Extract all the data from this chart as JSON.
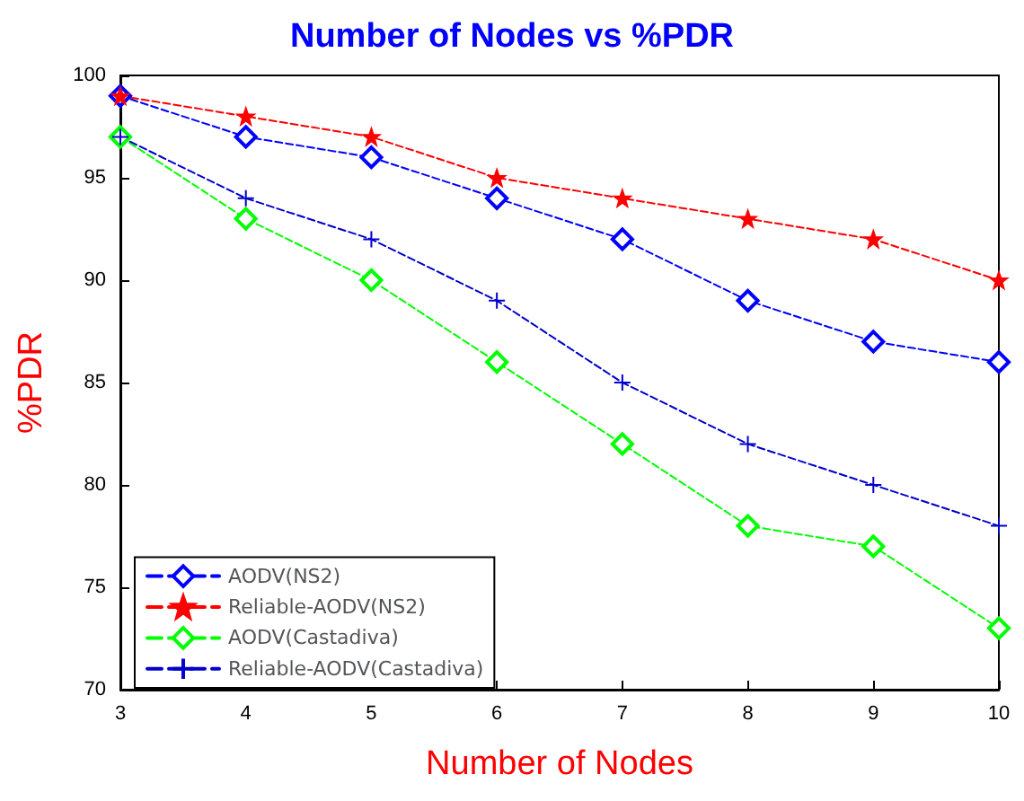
{
  "chart_data": {
    "type": "line",
    "title": "Number of Nodes vs %PDR",
    "xlabel": "Number of Nodes",
    "ylabel": "%PDR",
    "x": [
      3,
      4,
      5,
      6,
      7,
      8,
      9,
      10
    ],
    "series": [
      {
        "name": "AODV(NS2)",
        "color": "#0000ff",
        "marker": "diamond",
        "values": [
          99,
          97,
          96,
          94,
          92,
          89,
          87,
          86
        ]
      },
      {
        "name": "Reliable-AODV(NS2)",
        "color": "#ff0000",
        "marker": "star",
        "values": [
          99,
          98,
          97,
          95,
          94,
          93,
          92,
          90
        ]
      },
      {
        "name": "AODV(Castadiva)",
        "color": "#00ff00",
        "marker": "diamond",
        "values": [
          97,
          93,
          90,
          86,
          82,
          78,
          77,
          73
        ]
      },
      {
        "name": "Reliable-AODV(Castadiva)",
        "color": "#0000cc",
        "marker": "cross",
        "values": [
          97,
          94,
          92,
          89,
          85,
          82,
          80,
          78
        ]
      }
    ],
    "xlim": [
      3,
      10
    ],
    "xticks": [
      3,
      4,
      5,
      6,
      7,
      8,
      9,
      10
    ],
    "ylim": [
      70,
      100
    ],
    "yticks": [
      70,
      75,
      80,
      85,
      90,
      95,
      100
    ],
    "grid": false,
    "legend": "bottom left",
    "line_style": "dashed"
  }
}
